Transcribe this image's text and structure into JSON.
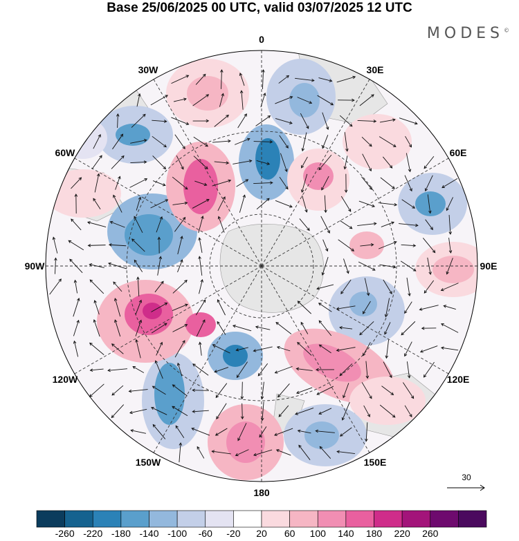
{
  "header": {
    "title": "Base 25/06/2025 00 UTC, valid 03/07/2025 12 UTC",
    "brand": "MODES",
    "brand_mark": "©"
  },
  "map": {
    "projection": "south-polar-stereographic",
    "longitude_labels": [
      {
        "text": "0",
        "lon": 0
      },
      {
        "text": "30E",
        "lon": 30
      },
      {
        "text": "60E",
        "lon": 60
      },
      {
        "text": "90E",
        "lon": 90
      },
      {
        "text": "120E",
        "lon": 120
      },
      {
        "text": "150E",
        "lon": 150
      },
      {
        "text": "180",
        "lon": 180
      },
      {
        "text": "150W",
        "lon": -150
      },
      {
        "text": "120W",
        "lon": -120
      },
      {
        "text": "90W",
        "lon": -90
      },
      {
        "text": "60W",
        "lon": -60
      },
      {
        "text": "30W",
        "lon": -30
      }
    ],
    "land_color": "#e6e6e6",
    "reference_vector": "30"
  },
  "colorbar": {
    "colors": [
      "#0b3c5d",
      "#15628f",
      "#2b82b7",
      "#5a9fcc",
      "#93b8dd",
      "#c3cfe8",
      "#e4e3f2",
      "#ffffff",
      "#fadadf",
      "#f6b6c4",
      "#f18eb3",
      "#e9609f",
      "#cf2d8a",
      "#a3147a",
      "#6e0a6e",
      "#4b0a5e"
    ],
    "ticks": [
      "-260",
      "-220",
      "-180",
      "-140",
      "-100",
      "-60",
      "-20",
      "20",
      "60",
      "100",
      "140",
      "180",
      "220",
      "260"
    ]
  }
}
